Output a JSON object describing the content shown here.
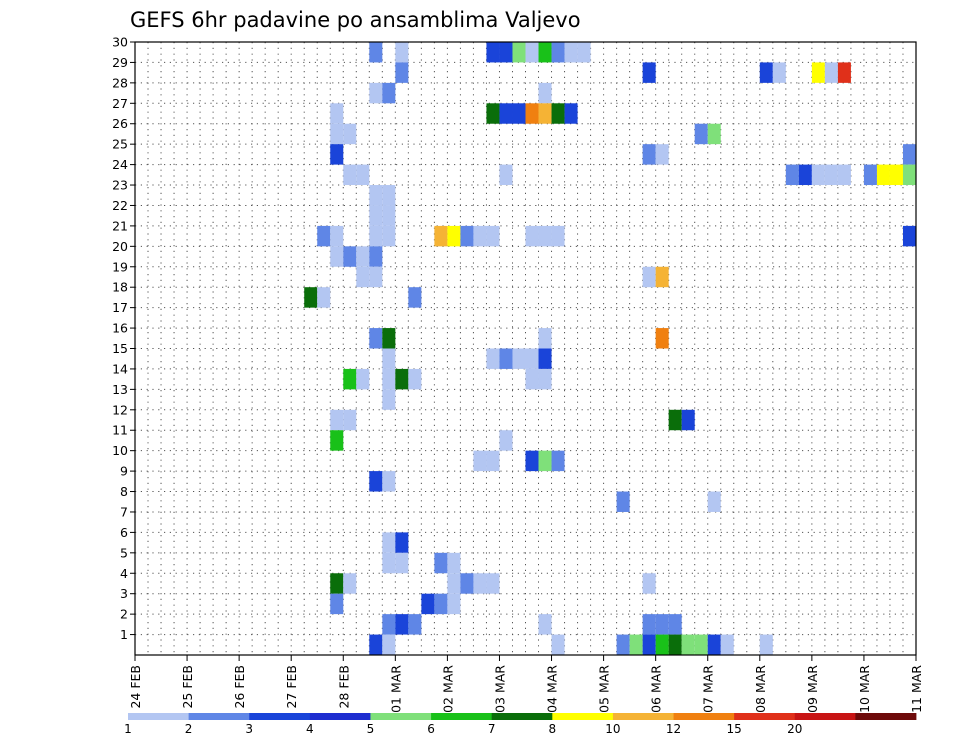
{
  "chart_data": {
    "type": "heatmap",
    "title": "GEFS 6hr padavine po ansamblima Valjevo",
    "xlabel": "",
    "ylabel": "",
    "x_tick_labels": [
      "24 FEB",
      "25 FEB",
      "26 FEB",
      "27 FEB",
      "28 FEB",
      "01 MAR",
      "02 MAR",
      "03 MAR",
      "04 MAR",
      "05 MAR",
      "06 MAR",
      "07 MAR",
      "08 MAR",
      "09 MAR",
      "10 MAR",
      "11 MAR"
    ],
    "x_range": [
      "24 FEB 00z",
      "11 MAR 00z"
    ],
    "y_tick_labels": [
      "1",
      "2",
      "3",
      "4",
      "5",
      "6",
      "7",
      "8",
      "9",
      "10",
      "11",
      "12",
      "13",
      "14",
      "15",
      "16",
      "17",
      "18",
      "19",
      "20",
      "21",
      "22",
      "23",
      "24",
      "25",
      "26",
      "27",
      "28",
      "29",
      "30"
    ],
    "y_range": [
      0,
      30
    ],
    "grid": true,
    "time_step_hours": 6,
    "colorbar": {
      "position": "bottom",
      "levels": [
        "1",
        "2",
        "3",
        "4",
        "5",
        "6",
        "7",
        "8",
        "10",
        "12",
        "15",
        "20"
      ],
      "colors": [
        "#b3c6f2",
        "#5f86e6",
        "#1a44d9",
        "#1e2ed0",
        "#7fe07a",
        "#19c119",
        "#0a6e0a",
        "#ffff00",
        "#f5b335",
        "#f08010",
        "#e0301a",
        "#c81414",
        "#6e0a0a"
      ]
    },
    "cells": [
      {
        "member": 30,
        "ens_time": "28 FEB 12z",
        "class": 1
      },
      {
        "member": 30,
        "ens_time": "01 MAR 00z",
        "class": 0
      },
      {
        "member": 30,
        "ens_time": "02 MAR 18z",
        "class": 2
      },
      {
        "member": 30,
        "ens_time": "03 MAR 00z",
        "class": 2
      },
      {
        "member": 30,
        "ens_time": "03 MAR 06z",
        "class": 4
      },
      {
        "member": 30,
        "ens_time": "03 MAR 12z",
        "class": 0
      },
      {
        "member": 30,
        "ens_time": "03 MAR 18z",
        "class": 5
      },
      {
        "member": 30,
        "ens_time": "04 MAR 00z",
        "class": 1
      },
      {
        "member": 30,
        "ens_time": "04 MAR 06z",
        "class": 0
      },
      {
        "member": 30,
        "ens_time": "04 MAR 12z",
        "class": 0
      },
      {
        "member": 29,
        "ens_time": "01 MAR 00z",
        "class": 1
      },
      {
        "member": 29,
        "ens_time": "05 MAR 18z",
        "class": 2
      },
      {
        "member": 29,
        "ens_time": "08 MAR 00z",
        "class": 2
      },
      {
        "member": 29,
        "ens_time": "08 MAR 06z",
        "class": 0
      },
      {
        "member": 29,
        "ens_time": "09 MAR 00z",
        "class": 7
      },
      {
        "member": 29,
        "ens_time": "09 MAR 06z",
        "class": 0
      },
      {
        "member": 29,
        "ens_time": "09 MAR 12z",
        "class": 10
      },
      {
        "member": 28,
        "ens_time": "28 FEB 12z",
        "class": 0
      },
      {
        "member": 28,
        "ens_time": "28 FEB 18z",
        "class": 1
      },
      {
        "member": 28,
        "ens_time": "03 MAR 18z",
        "class": 0
      },
      {
        "member": 27,
        "ens_time": "27 FEB 18z",
        "class": 0
      },
      {
        "member": 27,
        "ens_time": "02 MAR 18z",
        "class": 6
      },
      {
        "member": 27,
        "ens_time": "03 MAR 00z",
        "class": 2
      },
      {
        "member": 27,
        "ens_time": "03 MAR 06z",
        "class": 2
      },
      {
        "member": 27,
        "ens_time": "03 MAR 12z",
        "class": 9
      },
      {
        "member": 27,
        "ens_time": "03 MAR 18z",
        "class": 8
      },
      {
        "member": 27,
        "ens_time": "04 MAR 00z",
        "class": 6
      },
      {
        "member": 27,
        "ens_time": "04 MAR 06z",
        "class": 2
      },
      {
        "member": 26,
        "ens_time": "27 FEB 18z",
        "class": 0
      },
      {
        "member": 26,
        "ens_time": "28 FEB 00z",
        "class": 0
      },
      {
        "member": 26,
        "ens_time": "06 MAR 18z",
        "class": 1
      },
      {
        "member": 26,
        "ens_time": "07 MAR 00z",
        "class": 4
      },
      {
        "member": 25,
        "ens_time": "27 FEB 18z",
        "class": 2
      },
      {
        "member": 25,
        "ens_time": "05 MAR 18z",
        "class": 1
      },
      {
        "member": 25,
        "ens_time": "06 MAR 00z",
        "class": 0
      },
      {
        "member": 25,
        "ens_time": "10 MAR 18z",
        "class": 1
      },
      {
        "member": 24,
        "ens_time": "28 FEB 00z",
        "class": 0
      },
      {
        "member": 24,
        "ens_time": "28 FEB 06z",
        "class": 0
      },
      {
        "member": 24,
        "ens_time": "03 MAR 00z",
        "class": 0
      },
      {
        "member": 24,
        "ens_time": "08 MAR 12z",
        "class": 1
      },
      {
        "member": 24,
        "ens_time": "08 MAR 18z",
        "class": 2
      },
      {
        "member": 24,
        "ens_time": "09 MAR 00z",
        "class": 0
      },
      {
        "member": 24,
        "ens_time": "09 MAR 06z",
        "class": 0
      },
      {
        "member": 24,
        "ens_time": "09 MAR 12z",
        "class": 0
      },
      {
        "member": 24,
        "ens_time": "10 MAR 00z",
        "class": 1
      },
      {
        "member": 24,
        "ens_time": "10 MAR 06z",
        "class": 7
      },
      {
        "member": 24,
        "ens_time": "10 MAR 12z",
        "class": 7
      },
      {
        "member": 24,
        "ens_time": "10 MAR 18z",
        "class": 4
      },
      {
        "member": 23,
        "ens_time": "28 FEB 12z",
        "class": 0
      },
      {
        "member": 23,
        "ens_time": "28 FEB 18z",
        "class": 0
      },
      {
        "member": 22,
        "ens_time": "28 FEB 12z",
        "class": 0
      },
      {
        "member": 22,
        "ens_time": "28 FEB 18z",
        "class": 0
      },
      {
        "member": 21,
        "ens_time": "27 FEB 12z",
        "class": 1
      },
      {
        "member": 21,
        "ens_time": "27 FEB 18z",
        "class": 0
      },
      {
        "member": 21,
        "ens_time": "28 FEB 12z",
        "class": 0
      },
      {
        "member": 21,
        "ens_time": "28 FEB 18z",
        "class": 0
      },
      {
        "member": 21,
        "ens_time": "01 MAR 18z",
        "class": 8
      },
      {
        "member": 21,
        "ens_time": "02 MAR 00z",
        "class": 7
      },
      {
        "member": 21,
        "ens_time": "02 MAR 06z",
        "class": 1
      },
      {
        "member": 21,
        "ens_time": "02 MAR 12z",
        "class": 0
      },
      {
        "member": 21,
        "ens_time": "02 MAR 18z",
        "class": 0
      },
      {
        "member": 21,
        "ens_time": "03 MAR 12z",
        "class": 0
      },
      {
        "member": 21,
        "ens_time": "03 MAR 18z",
        "class": 0
      },
      {
        "member": 21,
        "ens_time": "04 MAR 00z",
        "class": 0
      },
      {
        "member": 21,
        "ens_time": "10 MAR 18z",
        "class": 2
      },
      {
        "member": 20,
        "ens_time": "27 FEB 18z",
        "class": 0
      },
      {
        "member": 20,
        "ens_time": "28 FEB 00z",
        "class": 1
      },
      {
        "member": 20,
        "ens_time": "28 FEB 06z",
        "class": 0
      },
      {
        "member": 20,
        "ens_time": "28 FEB 12z",
        "class": 1
      },
      {
        "member": 19,
        "ens_time": "28 FEB 06z",
        "class": 0
      },
      {
        "member": 19,
        "ens_time": "28 FEB 12z",
        "class": 0
      },
      {
        "member": 19,
        "ens_time": "05 MAR 18z",
        "class": 0
      },
      {
        "member": 19,
        "ens_time": "06 MAR 00z",
        "class": 8
      },
      {
        "member": 18,
        "ens_time": "27 FEB 06z",
        "class": 6
      },
      {
        "member": 18,
        "ens_time": "27 FEB 12z",
        "class": 0
      },
      {
        "member": 18,
        "ens_time": "01 MAR 06z",
        "class": 1
      },
      {
        "member": 16,
        "ens_time": "28 FEB 12z",
        "class": 1
      },
      {
        "member": 16,
        "ens_time": "28 FEB 18z",
        "class": 6
      },
      {
        "member": 16,
        "ens_time": "03 MAR 18z",
        "class": 0
      },
      {
        "member": 16,
        "ens_time": "06 MAR 00z",
        "class": 9
      },
      {
        "member": 15,
        "ens_time": "28 FEB 18z",
        "class": 0
      },
      {
        "member": 15,
        "ens_time": "02 MAR 18z",
        "class": 0
      },
      {
        "member": 15,
        "ens_time": "03 MAR 00z",
        "class": 1
      },
      {
        "member": 15,
        "ens_time": "03 MAR 06z",
        "class": 0
      },
      {
        "member": 15,
        "ens_time": "03 MAR 12z",
        "class": 0
      },
      {
        "member": 15,
        "ens_time": "03 MAR 18z",
        "class": 2
      },
      {
        "member": 14,
        "ens_time": "28 FEB 00z",
        "class": 5
      },
      {
        "member": 14,
        "ens_time": "28 FEB 06z",
        "class": 0
      },
      {
        "member": 14,
        "ens_time": "28 FEB 18z",
        "class": 0
      },
      {
        "member": 14,
        "ens_time": "01 MAR 00z",
        "class": 6
      },
      {
        "member": 14,
        "ens_time": "01 MAR 06z",
        "class": 0
      },
      {
        "member": 14,
        "ens_time": "03 MAR 12z",
        "class": 0
      },
      {
        "member": 14,
        "ens_time": "03 MAR 18z",
        "class": 0
      },
      {
        "member": 13,
        "ens_time": "28 FEB 18z",
        "class": 0
      },
      {
        "member": 12,
        "ens_time": "27 FEB 18z",
        "class": 0
      },
      {
        "member": 12,
        "ens_time": "28 FEB 00z",
        "class": 0
      },
      {
        "member": 12,
        "ens_time": "06 MAR 06z",
        "class": 6
      },
      {
        "member": 12,
        "ens_time": "06 MAR 12z",
        "class": 2
      },
      {
        "member": 11,
        "ens_time": "27 FEB 18z",
        "class": 5
      },
      {
        "member": 11,
        "ens_time": "03 MAR 00z",
        "class": 0
      },
      {
        "member": 10,
        "ens_time": "02 MAR 12z",
        "class": 0
      },
      {
        "member": 10,
        "ens_time": "02 MAR 18z",
        "class": 0
      },
      {
        "member": 10,
        "ens_time": "03 MAR 12z",
        "class": 2
      },
      {
        "member": 10,
        "ens_time": "03 MAR 18z",
        "class": 4
      },
      {
        "member": 10,
        "ens_time": "04 MAR 00z",
        "class": 1
      },
      {
        "member": 9,
        "ens_time": "28 FEB 12z",
        "class": 2
      },
      {
        "member": 9,
        "ens_time": "28 FEB 18z",
        "class": 0
      },
      {
        "member": 8,
        "ens_time": "05 MAR 06z",
        "class": 1
      },
      {
        "member": 8,
        "ens_time": "07 MAR 00z",
        "class": 0
      },
      {
        "member": 6,
        "ens_time": "28 FEB 18z",
        "class": 0
      },
      {
        "member": 6,
        "ens_time": "01 MAR 00z",
        "class": 2
      },
      {
        "member": 5,
        "ens_time": "28 FEB 18z",
        "class": 0
      },
      {
        "member": 5,
        "ens_time": "01 MAR 00z",
        "class": 0
      },
      {
        "member": 5,
        "ens_time": "01 MAR 18z",
        "class": 1
      },
      {
        "member": 5,
        "ens_time": "02 MAR 00z",
        "class": 0
      },
      {
        "member": 4,
        "ens_time": "27 FEB 18z",
        "class": 6
      },
      {
        "member": 4,
        "ens_time": "28 FEB 00z",
        "class": 0
      },
      {
        "member": 4,
        "ens_time": "02 MAR 00z",
        "class": 0
      },
      {
        "member": 4,
        "ens_time": "02 MAR 06z",
        "class": 1
      },
      {
        "member": 4,
        "ens_time": "02 MAR 12z",
        "class": 0
      },
      {
        "member": 4,
        "ens_time": "02 MAR 18z",
        "class": 0
      },
      {
        "member": 4,
        "ens_time": "05 MAR 18z",
        "class": 0
      },
      {
        "member": 3,
        "ens_time": "27 FEB 18z",
        "class": 1
      },
      {
        "member": 3,
        "ens_time": "01 MAR 12z",
        "class": 2
      },
      {
        "member": 3,
        "ens_time": "01 MAR 18z",
        "class": 1
      },
      {
        "member": 3,
        "ens_time": "02 MAR 00z",
        "class": 0
      },
      {
        "member": 2,
        "ens_time": "28 FEB 18z",
        "class": 1
      },
      {
        "member": 2,
        "ens_time": "01 MAR 00z",
        "class": 2
      },
      {
        "member": 2,
        "ens_time": "01 MAR 06z",
        "class": 1
      },
      {
        "member": 2,
        "ens_time": "03 MAR 18z",
        "class": 0
      },
      {
        "member": 2,
        "ens_time": "05 MAR 18z",
        "class": 1
      },
      {
        "member": 2,
        "ens_time": "06 MAR 00z",
        "class": 1
      },
      {
        "member": 2,
        "ens_time": "06 MAR 06z",
        "class": 1
      },
      {
        "member": 1,
        "ens_time": "28 FEB 12z",
        "class": 2
      },
      {
        "member": 1,
        "ens_time": "28 FEB 18z",
        "class": 0
      },
      {
        "member": 1,
        "ens_time": "04 MAR 00z",
        "class": 0
      },
      {
        "member": 1,
        "ens_time": "05 MAR 06z",
        "class": 1
      },
      {
        "member": 1,
        "ens_time": "05 MAR 12z",
        "class": 4
      },
      {
        "member": 1,
        "ens_time": "05 MAR 18z",
        "class": 2
      },
      {
        "member": 1,
        "ens_time": "06 MAR 00z",
        "class": 5
      },
      {
        "member": 1,
        "ens_time": "06 MAR 06z",
        "class": 6
      },
      {
        "member": 1,
        "ens_time": "06 MAR 12z",
        "class": 4
      },
      {
        "member": 1,
        "ens_time": "06 MAR 18z",
        "class": 4
      },
      {
        "member": 1,
        "ens_time": "07 MAR 00z",
        "class": 2
      },
      {
        "member": 1,
        "ens_time": "07 MAR 06z",
        "class": 0
      },
      {
        "member": 1,
        "ens_time": "08 MAR 00z",
        "class": 0
      }
    ]
  }
}
